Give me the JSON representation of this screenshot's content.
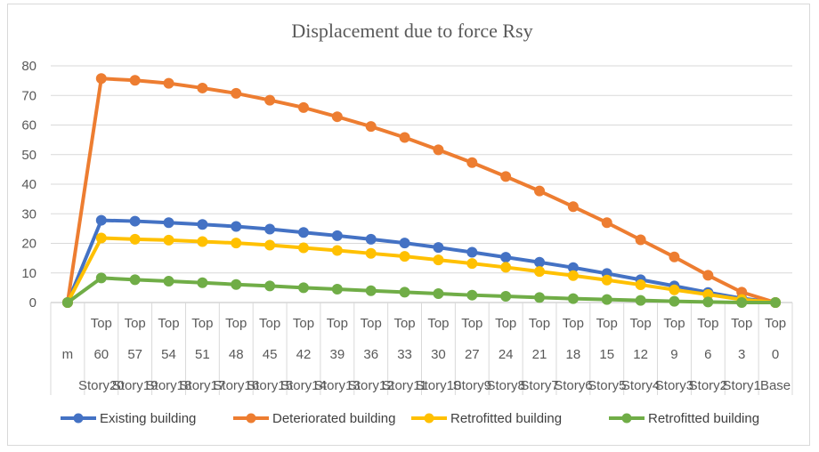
{
  "chart_data": {
    "type": "line",
    "title": "Displacement due to force Rsy",
    "ylim": [
      0,
      80
    ],
    "yticks": [
      0,
      10,
      20,
      30,
      40,
      50,
      60,
      70,
      80
    ],
    "categories_row1": [
      "",
      "Top",
      "Top",
      "Top",
      "Top",
      "Top",
      "Top",
      "Top",
      "Top",
      "Top",
      "Top",
      "Top",
      "Top",
      "Top",
      "Top",
      "Top",
      "Top",
      "Top",
      "Top",
      "Top",
      "Top",
      "Top"
    ],
    "categories_row2": [
      "m",
      "60",
      "57",
      "54",
      "51",
      "48",
      "45",
      "42",
      "39",
      "36",
      "33",
      "30",
      "27",
      "24",
      "21",
      "18",
      "15",
      "12",
      "9",
      "6",
      "3",
      "0"
    ],
    "categories_row3": [
      "",
      "Story20",
      "Story19",
      "Story18",
      "Story17",
      "Story16",
      "Story15",
      "Story14",
      "Story13",
      "Story12",
      "Story11",
      "Story10",
      "Story9",
      "Story8",
      "Story7",
      "Story6",
      "Story5",
      "Story4",
      "Story3",
      "Story2",
      "Story1",
      "Base"
    ],
    "series": [
      {
        "name": "Existing building",
        "color": "#4472c4",
        "values": [
          0,
          27.8,
          27.5,
          27,
          26.4,
          25.7,
          24.8,
          23.7,
          22.6,
          21.4,
          20.1,
          18.6,
          17,
          15.3,
          13.6,
          11.8,
          9.8,
          7.7,
          5.6,
          3.4,
          1.4,
          0
        ]
      },
      {
        "name": "Deteriorated building",
        "color": "#ed7d31",
        "values": [
          0,
          75.7,
          75.1,
          74.1,
          72.5,
          70.7,
          68.4,
          65.9,
          62.8,
          59.5,
          55.8,
          51.6,
          47.3,
          42.6,
          37.7,
          32.4,
          27,
          21.2,
          15.4,
          9.2,
          3.5,
          0
        ]
      },
      {
        "name": "Retrofitted building",
        "color": "#ffc000",
        "values": [
          0,
          21.8,
          21.4,
          21.1,
          20.6,
          20.1,
          19.4,
          18.5,
          17.6,
          16.6,
          15.6,
          14.4,
          13.2,
          11.9,
          10.5,
          9.1,
          7.6,
          6,
          4.3,
          2.7,
          1,
          0
        ]
      },
      {
        "name": "Retrofitted building",
        "color": "#70ad47",
        "values": [
          0,
          8.3,
          7.7,
          7.2,
          6.7,
          6.1,
          5.6,
          5,
          4.5,
          4,
          3.5,
          3,
          2.5,
          2.1,
          1.7,
          1.3,
          1,
          0.7,
          0.4,
          0.2,
          0,
          0
        ]
      }
    ]
  }
}
